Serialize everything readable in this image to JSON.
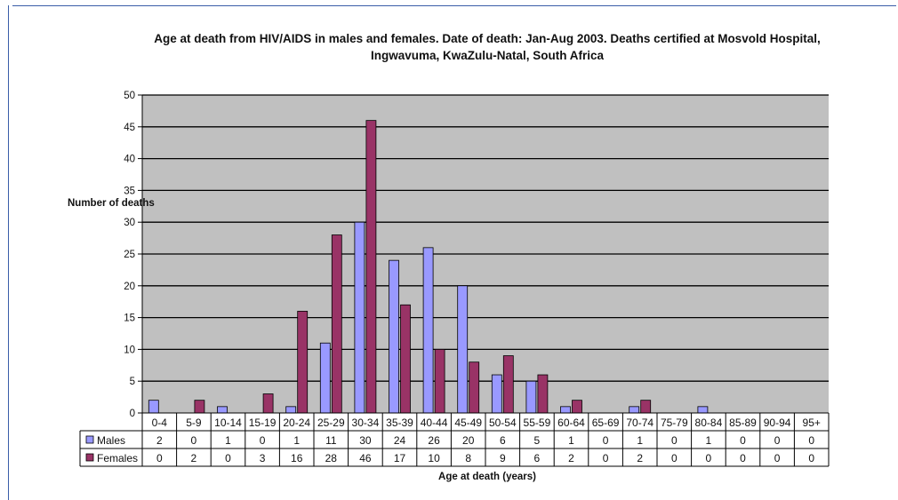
{
  "chart_data": {
    "type": "bar",
    "title": "Age at death from HIV/AIDS in males and females. Date of death: Jan-Aug 2003. Deaths certified at Mosvold Hospital, Ingwavuma, KwaZulu-Natal, South Africa",
    "title_lines": [
      "Age at death from HIV/AIDS in males and females. Date of death: Jan-Aug 2003. Deaths certified at Mosvold Hospital,",
      "Ingwavuma, KwaZulu-Natal, South Africa"
    ],
    "xlabel": "Age at death (years)",
    "ylabel": "Number of deaths",
    "ylim": [
      0,
      50
    ],
    "yticks": [
      0,
      5,
      10,
      15,
      20,
      25,
      30,
      35,
      40,
      45,
      50
    ],
    "grid": true,
    "legend": "data-table",
    "categories": [
      "0-4",
      "5-9",
      "10-14",
      "15-19",
      "20-24",
      "25-29",
      "30-34",
      "35-39",
      "40-44",
      "45-49",
      "50-54",
      "55-59",
      "60-64",
      "65-69",
      "70-74",
      "75-79",
      "80-84",
      "85-89",
      "90-94",
      "95+"
    ],
    "series": [
      {
        "name": "Males",
        "color": "#9999ff",
        "values": [
          2,
          0,
          1,
          0,
          1,
          11,
          30,
          24,
          26,
          20,
          6,
          5,
          1,
          0,
          1,
          0,
          1,
          0,
          0,
          0
        ]
      },
      {
        "name": "Females",
        "color": "#993366",
        "values": [
          0,
          2,
          0,
          3,
          16,
          28,
          46,
          17,
          10,
          8,
          9,
          6,
          2,
          0,
          2,
          0,
          0,
          0,
          0,
          0
        ]
      }
    ],
    "plot_background": "#c0c0c0"
  }
}
